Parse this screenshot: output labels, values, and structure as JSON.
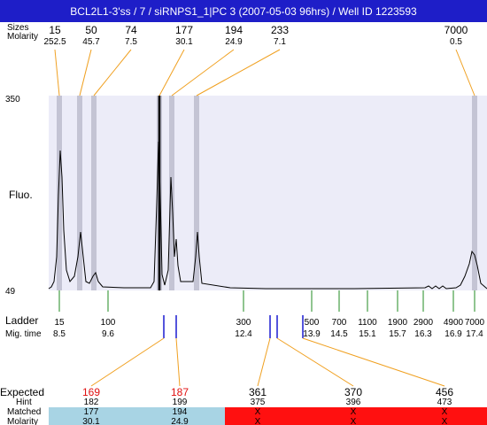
{
  "header": {
    "title": "BCL2L1-3'ss / 7 / siRNPS1_1|PC 3 (2007-05-03 96hrs) / Well ID 1223593",
    "sizes_label": "Sizes",
    "molarity_label": "Molarity"
  },
  "peaks": [
    {
      "size": "15",
      "molarity": "252.5"
    },
    {
      "size": "50",
      "molarity": "45.7"
    },
    {
      "size": "74",
      "molarity": "7.5"
    },
    {
      "size": "177",
      "molarity": "30.1"
    },
    {
      "size": "194",
      "molarity": "24.9"
    },
    {
      "size": "233",
      "molarity": "7.1"
    },
    {
      "size": "7000",
      "molarity": "0.5"
    }
  ],
  "plot": {
    "y_max_label": "350",
    "y_min_label": "49",
    "y_axis_label": "Fluo."
  },
  "ladder": {
    "label": "Ladder",
    "migtime_label": "Mig. time",
    "entries": [
      {
        "size": "15",
        "time": "8.5"
      },
      {
        "size": "100",
        "time": "9.6"
      },
      {
        "size": "300",
        "time": "12.4"
      },
      {
        "size": "500",
        "time": "13.9"
      },
      {
        "size": "700",
        "time": "14.5"
      },
      {
        "size": "1100",
        "time": "15.1"
      },
      {
        "size": "1900",
        "time": "15.7"
      },
      {
        "size": "2900",
        "time": "16.3"
      },
      {
        "size": "4900",
        "time": "16.9"
      },
      {
        "size": "7000",
        "time": "17.4"
      }
    ]
  },
  "expected": {
    "label": "Expected",
    "hint_label": "Hint",
    "matched_label": "Matched",
    "molarity_label": "Molarity",
    "items": [
      {
        "expected": "169",
        "hint": "182",
        "matched": "177",
        "molarity": "30.1",
        "status": "matched"
      },
      {
        "expected": "187",
        "hint": "199",
        "matched": "194",
        "molarity": "24.9",
        "status": "matched"
      },
      {
        "expected": "361",
        "hint": "375",
        "matched": "X",
        "molarity": "X",
        "status": "missing"
      },
      {
        "expected": "370",
        "hint": "396",
        "matched": "X",
        "molarity": "X",
        "status": "missing"
      },
      {
        "expected": "456",
        "hint": "473",
        "matched": "X",
        "molarity": "X",
        "status": "missing"
      }
    ]
  },
  "colors": {
    "header_bg": "#1e1ec8",
    "header_text": "#ffffff",
    "plot_bg": "#ececf8",
    "peak_band": "#c4c4d4",
    "connector": "#f0a020",
    "ladder_tick": "#228b22",
    "blue_tick": "#1a1ad0",
    "expected_red": "#e01010",
    "matched_bg": "#a8d4e4",
    "missing_bg": "#ff1010"
  }
}
